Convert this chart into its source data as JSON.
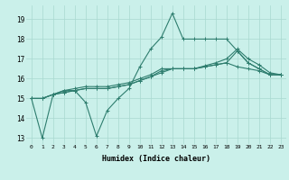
{
  "xlabel": "Humidex (Indice chaleur)",
  "x": [
    0,
    1,
    2,
    3,
    4,
    5,
    6,
    7,
    8,
    9,
    10,
    11,
    12,
    13,
    14,
    15,
    16,
    17,
    18,
    19,
    20,
    21,
    22,
    23
  ],
  "line1": [
    15.0,
    13.0,
    15.2,
    15.3,
    15.4,
    14.8,
    13.1,
    14.4,
    15.0,
    15.5,
    16.6,
    17.5,
    18.1,
    19.3,
    18.0,
    18.0,
    18.0,
    18.0,
    18.0,
    17.4,
    16.8,
    16.5,
    16.2,
    16.2
  ],
  "line2": [
    15.0,
    15.0,
    15.2,
    15.4,
    15.5,
    15.6,
    15.6,
    15.6,
    15.7,
    15.8,
    16.0,
    16.2,
    16.5,
    16.5,
    16.5,
    16.5,
    16.65,
    16.8,
    17.0,
    17.5,
    17.0,
    16.7,
    16.3,
    16.2
  ],
  "line3": [
    15.0,
    15.0,
    15.2,
    15.3,
    15.4,
    15.5,
    15.5,
    15.5,
    15.6,
    15.7,
    15.9,
    16.1,
    16.4,
    16.5,
    16.5,
    16.5,
    16.6,
    16.7,
    16.8,
    17.4,
    16.8,
    16.5,
    16.2,
    16.2
  ],
  "line4": [
    15.0,
    15.0,
    15.2,
    15.4,
    15.4,
    15.5,
    15.5,
    15.5,
    15.6,
    15.7,
    15.9,
    16.1,
    16.3,
    16.5,
    16.5,
    16.5,
    16.6,
    16.7,
    16.8,
    16.6,
    16.5,
    16.4,
    16.2,
    16.2
  ],
  "line_color": "#2E7D6E",
  "bg_color": "#CAF0EA",
  "grid_color": "#A8D8D0",
  "ylim_min": 12.7,
  "ylim_max": 19.7,
  "yticks": [
    13,
    14,
    15,
    16,
    17,
    18,
    19
  ],
  "xticks": [
    0,
    1,
    2,
    3,
    4,
    5,
    6,
    7,
    8,
    9,
    10,
    11,
    12,
    13,
    14,
    15,
    16,
    17,
    18,
    19,
    20,
    21,
    22,
    23
  ]
}
